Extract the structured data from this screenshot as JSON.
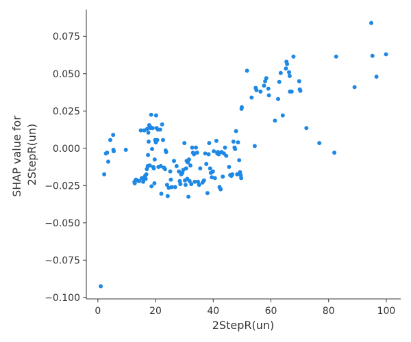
{
  "chart_data": {
    "type": "scatter",
    "xlabel": "2StepR(un)",
    "ylabel_lines": [
      "SHAP value for",
      "2StepR(un)"
    ],
    "xlim": [
      -4,
      105
    ],
    "ylim": [
      -0.101,
      0.093
    ],
    "xticks": [
      0,
      20,
      40,
      60,
      80,
      100
    ],
    "xtick_labels": [
      "0",
      "20",
      "40",
      "60",
      "80",
      "100"
    ],
    "yticks": [
      -0.1,
      -0.075,
      -0.05,
      -0.025,
      0.0,
      0.025,
      0.05,
      0.075
    ],
    "ytick_labels": [
      "−0.100",
      "−0.075",
      "−0.050",
      "−0.025",
      "0.000",
      "0.025",
      "0.050",
      "0.075"
    ],
    "grid": false,
    "point_color": "#1e88e5",
    "points": [
      [
        1,
        -0.0925
      ],
      [
        2.2,
        -0.0175
      ],
      [
        2.8,
        -0.0035
      ],
      [
        3.2,
        -0.003
      ],
      [
        3.6,
        -0.009
      ],
      [
        4.3,
        0.0055
      ],
      [
        5.3,
        0.009
      ],
      [
        5.4,
        -0.001
      ],
      [
        5.5,
        -0.002
      ],
      [
        9.7,
        -0.001
      ],
      [
        12.7,
        -0.0225
      ],
      [
        12.8,
        -0.0235
      ],
      [
        13.2,
        -0.021
      ],
      [
        13.7,
        -0.0215
      ],
      [
        14.3,
        -0.022
      ],
      [
        14.9,
        0.012
      ],
      [
        15.2,
        -0.02
      ],
      [
        15.7,
        -0.0225
      ],
      [
        15.9,
        -0.021
      ],
      [
        16.1,
        0.012
      ],
      [
        16.2,
        -0.0195
      ],
      [
        16.4,
        -0.0185
      ],
      [
        16.6,
        -0.0205
      ],
      [
        16.8,
        -0.0175
      ],
      [
        17.0,
        -0.014
      ],
      [
        17.1,
        0.013
      ],
      [
        17.3,
        -0.012
      ],
      [
        17.4,
        -0.0045
      ],
      [
        17.5,
        0.0105
      ],
      [
        17.6,
        0.0045
      ],
      [
        17.8,
        0.0155
      ],
      [
        18.0,
        -0.0115
      ],
      [
        18.1,
        0.0145
      ],
      [
        18.3,
        0.0135
      ],
      [
        18.5,
        0.0225
      ],
      [
        18.6,
        -0.0255
      ],
      [
        18.8,
        -0.0005
      ],
      [
        19.0,
        0.0135
      ],
      [
        19.2,
        -0.0125
      ],
      [
        19.4,
        -0.0135
      ],
      [
        19.6,
        -0.0235
      ],
      [
        19.7,
        -0.0075
      ],
      [
        19.9,
        0.0055
      ],
      [
        20.1,
        0.004
      ],
      [
        20.2,
        0.022
      ],
      [
        20.4,
        0.0135
      ],
      [
        20.6,
        0.0055
      ],
      [
        20.8,
        0.0125
      ],
      [
        21.0,
        -0.0125
      ],
      [
        21.6,
        0.0125
      ],
      [
        21.8,
        -0.012
      ],
      [
        22.0,
        -0.0305
      ],
      [
        22.3,
        0.016
      ],
      [
        22.6,
        0.0055
      ],
      [
        22.9,
        -0.013
      ],
      [
        23.3,
        -0.014
      ],
      [
        23.5,
        -0.0015
      ],
      [
        23.7,
        -0.0025
      ],
      [
        24.0,
        -0.0245
      ],
      [
        24.2,
        -0.032
      ],
      [
        24.6,
        -0.0265
      ],
      [
        25.1,
        -0.0155
      ],
      [
        25.3,
        -0.021
      ],
      [
        25.6,
        -0.026
      ],
      [
        26.4,
        -0.0085
      ],
      [
        26.8,
        -0.026
      ],
      [
        27.3,
        -0.012
      ],
      [
        28.1,
        -0.0155
      ],
      [
        28.4,
        -0.022
      ],
      [
        28.6,
        -0.024
      ],
      [
        28.9,
        -0.0175
      ],
      [
        29.3,
        -0.0165
      ],
      [
        29.6,
        -0.0145
      ],
      [
        30.0,
        0.0035
      ],
      [
        30.2,
        -0.0215
      ],
      [
        30.4,
        -0.0245
      ],
      [
        30.6,
        -0.0135
      ],
      [
        30.8,
        -0.0085
      ],
      [
        31.0,
        -0.0205
      ],
      [
        31.2,
        -0.0095
      ],
      [
        31.4,
        -0.0325
      ],
      [
        31.6,
        -0.0075
      ],
      [
        31.8,
        -0.022
      ],
      [
        32.1,
        -0.0115
      ],
      [
        32.4,
        -0.024
      ],
      [
        32.7,
        0.0005
      ],
      [
        33.0,
        -0.003
      ],
      [
        33.3,
        -0.004
      ],
      [
        33.6,
        -0.0225
      ],
      [
        34.0,
        0.0005
      ],
      [
        34.4,
        -0.003
      ],
      [
        34.7,
        -0.0225
      ],
      [
        35.1,
        -0.0245
      ],
      [
        35.5,
        -0.0135
      ],
      [
        36.3,
        -0.023
      ],
      [
        36.8,
        -0.0215
      ],
      [
        37.2,
        -0.0035
      ],
      [
        37.6,
        -0.0105
      ],
      [
        38.0,
        -0.03
      ],
      [
        38.4,
        -0.004
      ],
      [
        38.6,
        0.0035
      ],
      [
        38.9,
        -0.0135
      ],
      [
        39.2,
        -0.0165
      ],
      [
        39.5,
        -0.0195
      ],
      [
        39.9,
        -0.0155
      ],
      [
        40.2,
        -0.002
      ],
      [
        40.6,
        -0.02
      ],
      [
        41.1,
        0.005
      ],
      [
        41.4,
        -0.0035
      ],
      [
        41.6,
        -0.0025
      ],
      [
        41.9,
        -0.004
      ],
      [
        42.2,
        -0.026
      ],
      [
        42.6,
        -0.0275
      ],
      [
        42.9,
        -0.0025
      ],
      [
        43.3,
        -0.019
      ],
      [
        43.7,
        -0.0035
      ],
      [
        44.1,
        0.0005
      ],
      [
        44.5,
        -0.005
      ],
      [
        45.5,
        -0.0125
      ],
      [
        45.9,
        -0.018
      ],
      [
        46.3,
        -0.0185
      ],
      [
        46.6,
        -0.0175
      ],
      [
        47.0,
        0.0045
      ],
      [
        47.4,
        0.0005
      ],
      [
        47.6,
        -0.0005
      ],
      [
        47.9,
        0.0115
      ],
      [
        48.3,
        -0.0175
      ],
      [
        48.6,
        0.004
      ],
      [
        49.0,
        -0.008
      ],
      [
        49.3,
        -0.016
      ],
      [
        49.5,
        -0.018
      ],
      [
        49.7,
        -0.02
      ],
      [
        49.8,
        0.0265
      ],
      [
        49.9,
        0.0275
      ],
      [
        51.7,
        0.052
      ],
      [
        53.3,
        0.034
      ],
      [
        54.4,
        0.0015
      ],
      [
        54.7,
        0.0405
      ],
      [
        55.0,
        0.039
      ],
      [
        56.4,
        0.038
      ],
      [
        57.6,
        0.042
      ],
      [
        58.0,
        0.045
      ],
      [
        58.4,
        0.047
      ],
      [
        59.1,
        0.04
      ],
      [
        59.3,
        0.0355
      ],
      [
        61.4,
        0.0185
      ],
      [
        62.5,
        0.033
      ],
      [
        62.9,
        0.0445
      ],
      [
        63.4,
        0.0505
      ],
      [
        64.1,
        0.022
      ],
      [
        65.2,
        0.0535
      ],
      [
        65.4,
        0.058
      ],
      [
        65.6,
        0.0565
      ],
      [
        66.3,
        0.051
      ],
      [
        66.5,
        0.0485
      ],
      [
        66.6,
        0.038
      ],
      [
        67.2,
        0.038
      ],
      [
        67.8,
        0.0615
      ],
      [
        69.8,
        0.045
      ],
      [
        70.0,
        0.0395
      ],
      [
        70.2,
        0.0385
      ],
      [
        72.3,
        0.0135
      ],
      [
        76.8,
        0.0035
      ],
      [
        82.0,
        -0.003
      ],
      [
        82.6,
        0.0615
      ],
      [
        89.0,
        0.041
      ],
      [
        94.8,
        0.084
      ],
      [
        95.2,
        0.062
      ],
      [
        96.6,
        0.048
      ],
      [
        99.9,
        0.063
      ]
    ]
  }
}
